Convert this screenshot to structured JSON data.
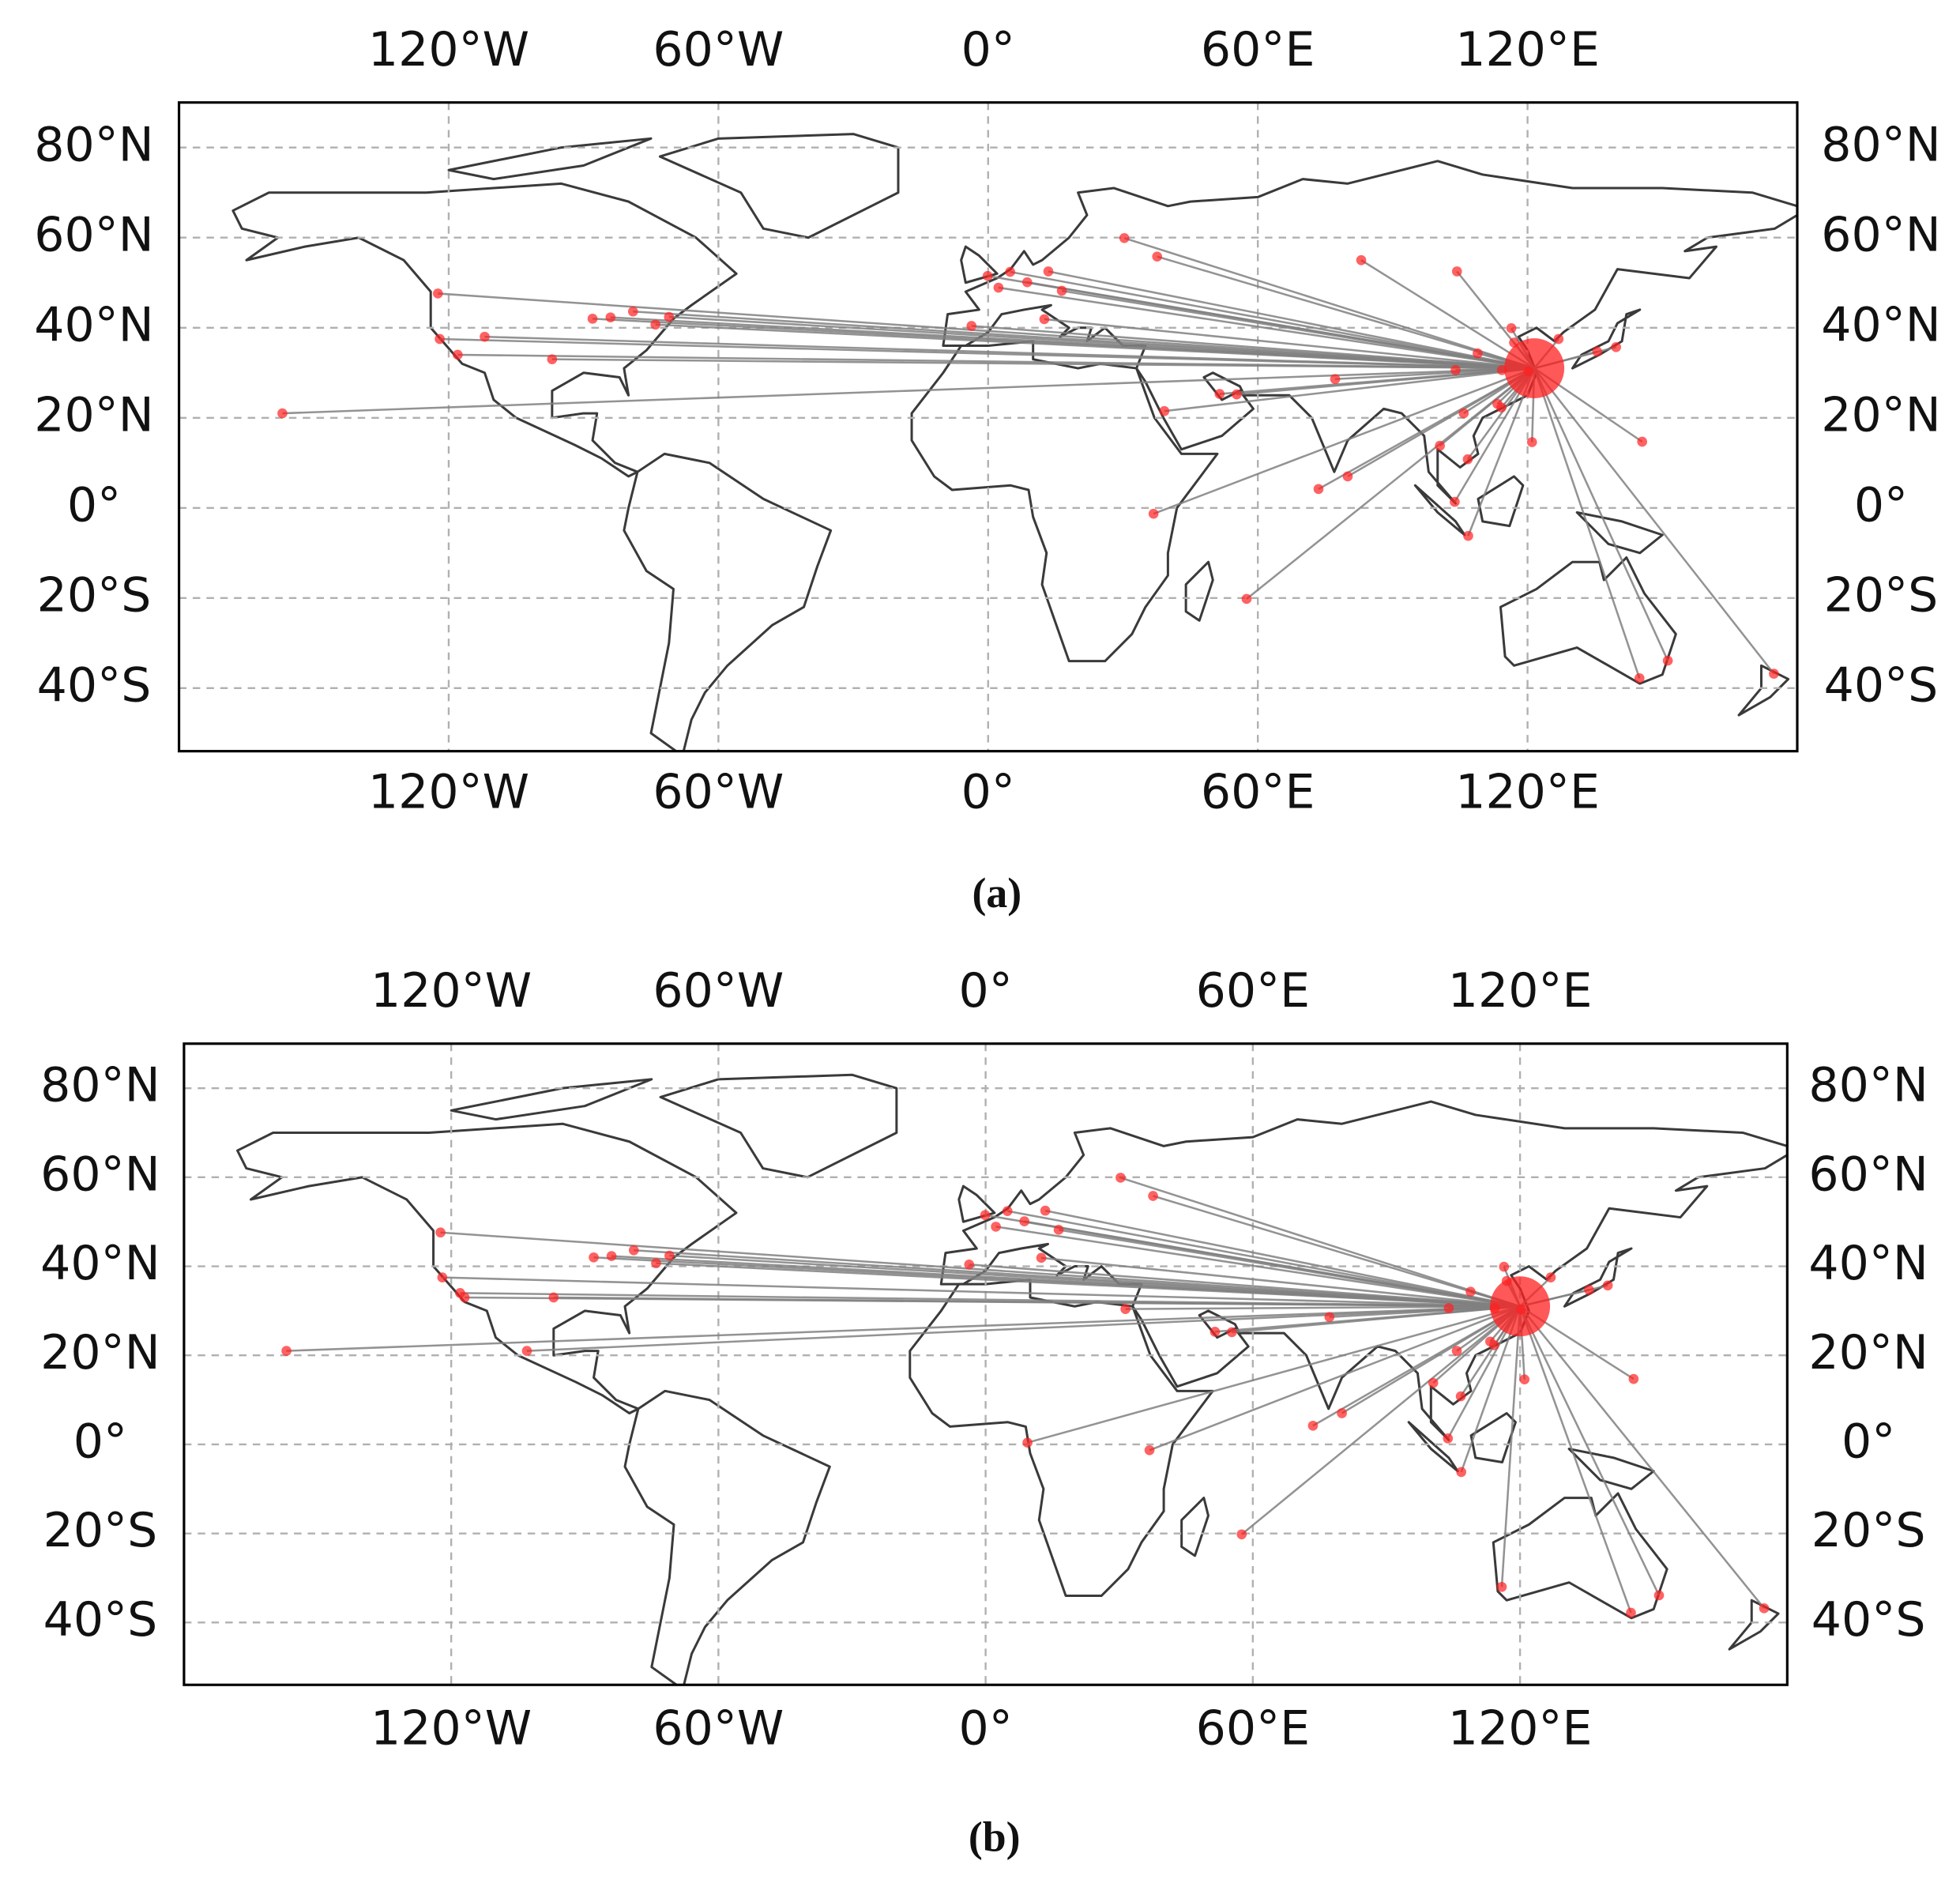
{
  "chart_data": [
    {
      "type": "map",
      "caption": "(a)",
      "xlim": [
        -180,
        180
      ],
      "ylim": [
        -54,
        90
      ],
      "xticks": [
        {
          "value": -120,
          "label": "120°W"
        },
        {
          "value": -60,
          "label": "60°W"
        },
        {
          "value": 0,
          "label": "0°"
        },
        {
          "value": 60,
          "label": "60°E"
        },
        {
          "value": 120,
          "label": "120°E"
        }
      ],
      "yticks": [
        {
          "value": -40,
          "label": "40°S"
        },
        {
          "value": -20,
          "label": "20°S"
        },
        {
          "value": 0,
          "label": "0°"
        },
        {
          "value": 20,
          "label": "20°N"
        },
        {
          "value": 40,
          "label": "40°N"
        },
        {
          "value": 60,
          "label": "60°N"
        },
        {
          "value": 80,
          "label": "80°N"
        }
      ],
      "grid": true,
      "point_color": "#ff2020",
      "line_color": "#808080",
      "hub": {
        "x": 121.5,
        "y": 31
      },
      "x": [
        -122.4,
        -122,
        -118,
        -112,
        -97,
        -88,
        -84,
        -79,
        -74,
        -71,
        -157,
        -3.7,
        2.3,
        -0.1,
        4.9,
        13.4,
        8.7,
        16.4,
        12.5,
        37.6,
        30.3,
        55.3,
        51.5,
        39.2,
        36.8,
        57.5,
        73.5,
        77.2,
        80,
        83,
        104.3,
        100.5,
        103.8,
        106.8,
        106.7,
        105.8,
        114.2,
        121,
        139.7,
        135.5,
        126.9,
        145.5,
        151.2,
        144.9,
        174.8,
        116.4,
        113.3,
        104,
        108.9,
        120.2,
        117,
        114.3
      ],
      "y": [
        47.6,
        37.5,
        34,
        38,
        33,
        42,
        42.3,
        43.6,
        40.7,
        42.4,
        21,
        40.4,
        48.9,
        51.5,
        52.4,
        52.5,
        50.1,
        48.2,
        41.9,
        55.8,
        59.9,
        25.2,
        25.3,
        21.5,
        -1.3,
        -20.2,
        4.2,
        28.6,
        7,
        55,
        52.5,
        13.8,
        1.35,
        -6.2,
        10.8,
        21,
        22.3,
        14.6,
        35.7,
        34.7,
        37.5,
        14.7,
        -33.9,
        -37.8,
        -36.8,
        39.9,
        23.1,
        30.6,
        34.3,
        30.3,
        36.7,
        30.6
      ]
    },
    {
      "type": "map",
      "caption": "(b)",
      "xlim": [
        -180,
        180
      ],
      "ylim": [
        -54,
        90
      ],
      "xticks": [
        {
          "value": -120,
          "label": "120°W"
        },
        {
          "value": -60,
          "label": "60°W"
        },
        {
          "value": 0,
          "label": "0°"
        },
        {
          "value": 60,
          "label": "60°E"
        },
        {
          "value": 120,
          "label": "120°E"
        }
      ],
      "yticks": [
        {
          "value": -40,
          "label": "40°S"
        },
        {
          "value": -20,
          "label": "20°S"
        },
        {
          "value": 0,
          "label": "0°"
        },
        {
          "value": 20,
          "label": "20°N"
        },
        {
          "value": 40,
          "label": "40°N"
        },
        {
          "value": 60,
          "label": "60°N"
        },
        {
          "value": 80,
          "label": "80°N"
        }
      ],
      "grid": true,
      "point_color": "#ff2020",
      "line_color": "#808080",
      "hub": {
        "x": 120,
        "y": 31
      },
      "x": [
        -122.4,
        -122,
        -118,
        -117,
        -97,
        -103,
        -88,
        -84,
        -79,
        -74,
        -71,
        -157,
        -3.7,
        2.3,
        -0.1,
        4.9,
        13.4,
        8.7,
        16.4,
        12.5,
        37.6,
        30.3,
        31.4,
        9.4,
        55.3,
        51.5,
        36.8,
        57.5,
        73.5,
        77.2,
        80,
        100.5,
        103.8,
        106.8,
        106.7,
        105.8,
        114.2,
        121,
        139.7,
        135.5,
        126.9,
        145.5,
        151.2,
        144.9,
        115.9,
        174.8,
        116.4,
        113.3,
        104,
        108.9,
        120.2,
        117,
        114.3
      ],
      "y": [
        47.6,
        37.5,
        34,
        33,
        33,
        21,
        42,
        42.3,
        43.6,
        40.7,
        42.4,
        21,
        40.4,
        48.9,
        51.5,
        52.4,
        52.5,
        50.1,
        48.2,
        41.9,
        55.8,
        59.9,
        30.4,
        0.4,
        25.2,
        25.3,
        -1.3,
        -20.2,
        4.2,
        28.6,
        7,
        13.8,
        1.35,
        -6.2,
        10.8,
        21,
        22.3,
        14.6,
        35.7,
        34.7,
        37.5,
        14.7,
        -33.9,
        -37.8,
        -32,
        -36.8,
        39.9,
        23.1,
        30.6,
        34.3,
        30.3,
        36.7,
        30.6
      ]
    }
  ]
}
